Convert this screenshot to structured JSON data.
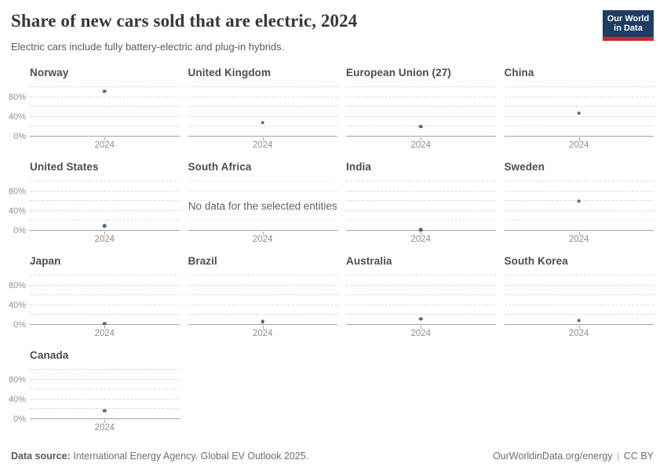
{
  "header": {
    "title": "Share of new cars sold that are electric, 2024",
    "subtitle": "Electric cars include fully battery-electric and plug-in hybrids.",
    "logo_line1": "Our World",
    "logo_line2": "in Data"
  },
  "footer": {
    "source_label": "Data source:",
    "source_text": "International Energy Agency. Global EV Outlook 2025.",
    "site_link": "OurWorldinData.org/energy",
    "separator": "|",
    "license": "CC BY"
  },
  "colors": {
    "dot": "#4C6A9C",
    "logo_navy": "#1d3d63",
    "logo_red": "#cc2a28"
  },
  "chart_data": {
    "type": "scatter",
    "title": "Share of new cars sold that are electric, 2024",
    "subtitle": "Electric cars include fully battery-electric and plug-in hybrids.",
    "layout": "small-multiples, 4 columns",
    "x_tick_label": "2024",
    "xlabel": "",
    "ylabel": "",
    "ylim": [
      0,
      100
    ],
    "gridline_values": [
      0,
      20,
      40,
      60,
      80,
      100
    ],
    "y_tick_labels": [
      {
        "value": 0,
        "label": "0%"
      },
      {
        "value": 40,
        "label": "40%"
      },
      {
        "value": 80,
        "label": "80%"
      }
    ],
    "no_data_message": "No data for the selected entities",
    "facets": [
      {
        "name": "Norway",
        "value": 92
      },
      {
        "name": "United Kingdom",
        "value": 28
      },
      {
        "name": "European Union (27)",
        "value": 20
      },
      {
        "name": "China",
        "value": 47
      },
      {
        "name": "United States",
        "value": 10
      },
      {
        "name": "South Africa",
        "value": null
      },
      {
        "name": "India",
        "value": 2
      },
      {
        "name": "Sweden",
        "value": 60
      },
      {
        "name": "Japan",
        "value": 3
      },
      {
        "name": "Brazil",
        "value": 7
      },
      {
        "name": "Australia",
        "value": 12
      },
      {
        "name": "South Korea",
        "value": 9
      },
      {
        "name": "Canada",
        "value": 17
      }
    ]
  }
}
